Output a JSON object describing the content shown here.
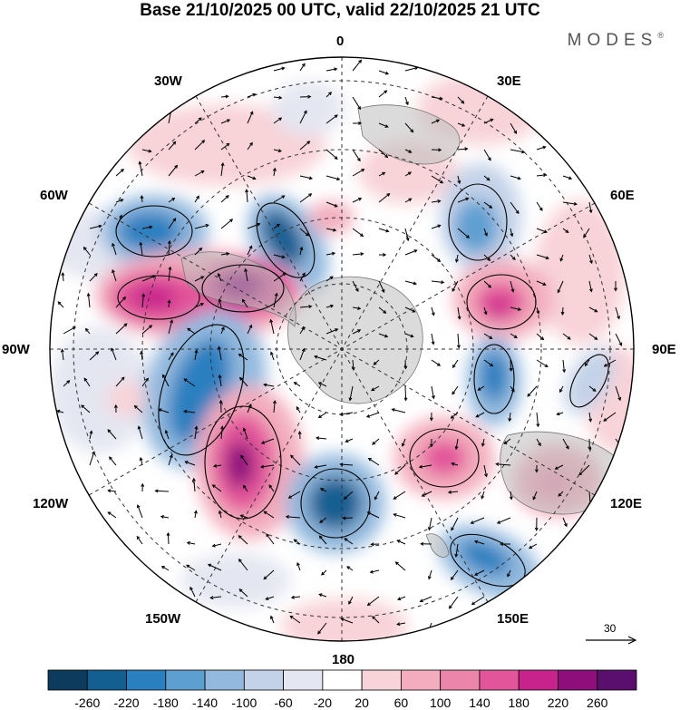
{
  "title": "Base 21/10/2025 00 UTC, valid 22/10/2025 21 UTC",
  "brand": {
    "name": "MODES",
    "mark": "®"
  },
  "meridians": {
    "m0": "0",
    "m30e": "30E",
    "m60e": "60E",
    "m90e": "90E",
    "m120e": "120E",
    "m150e": "150E",
    "m180": "180",
    "m150w": "150W",
    "m120w": "120W",
    "m90w": "90W",
    "m60w": "60W",
    "m30w": "30W"
  },
  "vector_scale": "30",
  "colorbar": {
    "labels": [
      "-260",
      "-220",
      "-180",
      "-140",
      "-100",
      "-60",
      "-20",
      "20",
      "60",
      "100",
      "140",
      "180",
      "220",
      "260"
    ],
    "colors": [
      "#0c3b5e",
      "#135f92",
      "#2a7fbf",
      "#5e9fd1",
      "#93b9de",
      "#c3d2e8",
      "#e4e6f1",
      "#ffffff",
      "#f8d3d8",
      "#f3adbe",
      "#ec85aa",
      "#e2559a",
      "#c8238c",
      "#8e0f7c",
      "#5a0f6e"
    ]
  },
  "colors": {
    "land": "#bdbdbd",
    "coast": "#777777",
    "grid": "#333333"
  }
}
